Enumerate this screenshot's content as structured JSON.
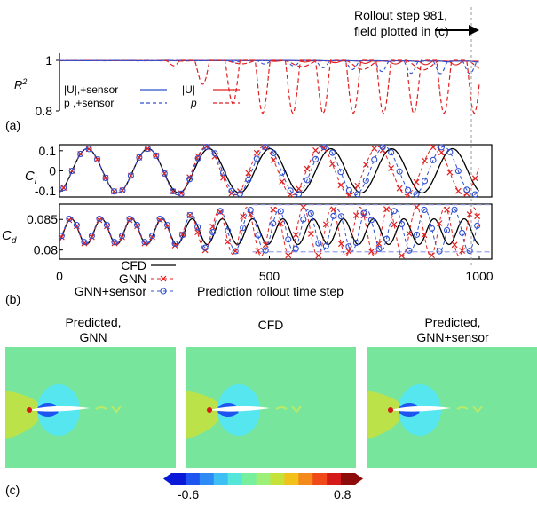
{
  "annotation": {
    "line1": "Rollout step 981,",
    "line2": "field plotted in (c)",
    "step": 981
  },
  "panel_labels": {
    "a": "(a)",
    "b": "(b)",
    "c": "(c)"
  },
  "chart_data": [
    {
      "type": "line",
      "title": "",
      "ylabel": "R^2",
      "ylim": [
        0.8,
        1.0
      ],
      "yticks": [
        "1",
        "0.8"
      ],
      "xlim": [
        0,
        1000
      ],
      "legend": {
        "umag_sensor": "|U|,+sensor",
        "p_sensor": "p ,+sensor",
        "umag": "|U|",
        "p": "p"
      },
      "series": [
        {
          "name": "|U|,+sensor",
          "style": "solid",
          "color": "#2f4fd0",
          "approx_min": 0.99
        },
        {
          "name": "p ,+sensor",
          "style": "dashed",
          "color": "#2f4fd0",
          "approx_min": 0.95
        },
        {
          "name": "|U|",
          "style": "solid",
          "color": "#e02020",
          "approx_min": 0.97
        },
        {
          "name": "p",
          "style": "dashed",
          "color": "#e02020",
          "approx_min": 0.79
        }
      ]
    },
    {
      "type": "line",
      "ylabel": "C_l",
      "yticks": [
        "0.1",
        "0",
        "-0.1"
      ],
      "ylim": [
        -0.13,
        0.13
      ],
      "xlim": [
        0,
        1000
      ],
      "series": [
        {
          "name": "CFD",
          "amplitude": 0.11,
          "period": 145
        },
        {
          "name": "GNN",
          "amplitude": 0.12,
          "period": 131
        },
        {
          "name": "GNN+sensor",
          "amplitude": 0.12,
          "period": 139
        }
      ]
    },
    {
      "type": "line",
      "ylabel": "C_d",
      "yticks": [
        "0.085",
        "0.08"
      ],
      "ylim": [
        0.0785,
        0.0875
      ],
      "xlim": [
        0,
        1000
      ],
      "xticks": [
        "0",
        "500",
        "1000"
      ],
      "xlabel": "Prediction rollout time step",
      "reference_band": [
        0.0797,
        0.0874
      ],
      "series": [
        {
          "name": "CFD",
          "mean": 0.083,
          "amplitude": 0.0021,
          "period": 72
        },
        {
          "name": "GNN",
          "mean": 0.083,
          "amplitude": 0.0035,
          "period": 66
        },
        {
          "name": "GNN+sensor",
          "mean": 0.0832,
          "amplitude": 0.0032,
          "period": 70
        }
      ],
      "legend": {
        "cfd": "CFD",
        "gnn": "GNN",
        "gnn_sensor": "GNN+sensor"
      }
    }
  ],
  "fields": {
    "titles": [
      "Predicted,\nGNN",
      "CFD",
      "Predicted,\nGNN+sensor"
    ],
    "colorbar": {
      "min": "-0.6",
      "max": "0.8",
      "colors": [
        "#0a18d8",
        "#1e55f0",
        "#2e8af5",
        "#3fc0f5",
        "#55e6da",
        "#77ef9c",
        "#9cef77",
        "#c4e23a",
        "#f2c21a",
        "#f58a1c",
        "#f04a1a",
        "#d41a1a",
        "#8e0c0c"
      ],
      "background": "#77e69c"
    }
  }
}
